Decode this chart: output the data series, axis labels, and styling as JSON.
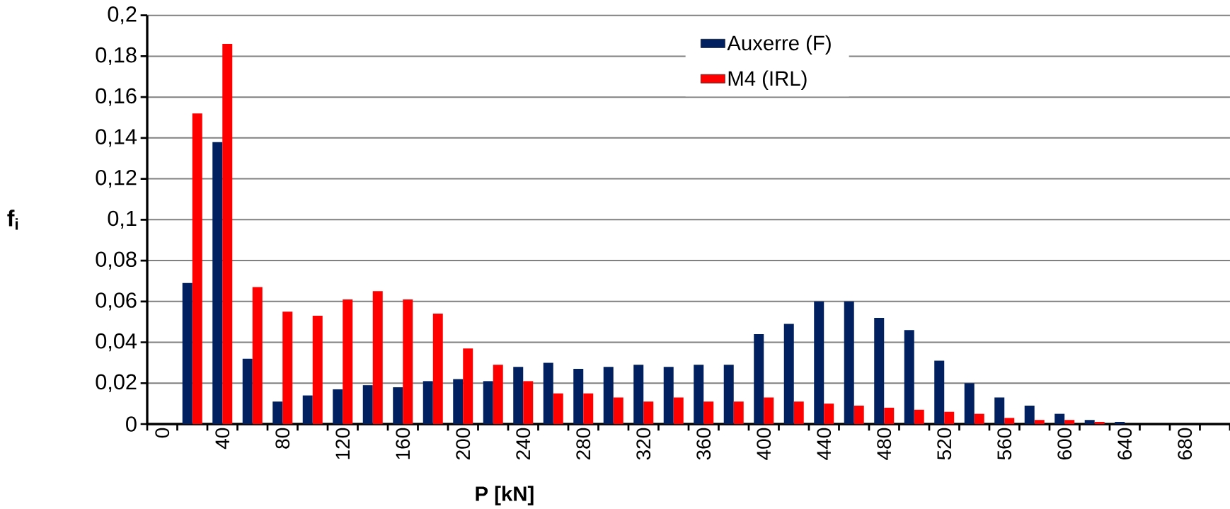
{
  "chart_data": {
    "type": "bar",
    "xlabel": "P [kN]",
    "ylabel": "f$_{i}$",
    "categories": [
      "0",
      null,
      "40",
      null,
      "80",
      null,
      "120",
      null,
      "160",
      null,
      "200",
      null,
      "240",
      null,
      "280",
      null,
      "320",
      null,
      "360",
      null,
      "400",
      null,
      "440",
      null,
      "480",
      null,
      "520",
      null,
      "560",
      null,
      "600",
      null,
      "640",
      null,
      "680",
      null
    ],
    "series": [
      {
        "name": "Auxerre (F)",
        "color": "#002060",
        "values": [
          0,
          0.069,
          0.138,
          0.032,
          0.011,
          0.014,
          0.017,
          0.019,
          0.018,
          0.021,
          0.022,
          0.021,
          0.028,
          0.03,
          0.027,
          0.028,
          0.029,
          0.028,
          0.029,
          0.029,
          0.044,
          0.049,
          0.06,
          0.06,
          0.052,
          0.046,
          0.031,
          0.02,
          0.013,
          0.009,
          0.005,
          0.002,
          0.001,
          0,
          0,
          0
        ]
      },
      {
        "name": "M4 (IRL)",
        "color": "#ff0000",
        "values": [
          0,
          0.152,
          0.186,
          0.067,
          0.055,
          0.053,
          0.061,
          0.065,
          0.061,
          0.054,
          0.037,
          0.029,
          0.021,
          0.015,
          0.015,
          0.013,
          0.011,
          0.013,
          0.011,
          0.011,
          0.013,
          0.011,
          0.01,
          0.009,
          0.008,
          0.007,
          0.006,
          0.005,
          0.003,
          0.002,
          0.002,
          0.001,
          0,
          0,
          0,
          0
        ]
      }
    ],
    "ylim": [
      0,
      0.2
    ],
    "yticks": [
      {
        "value": 0,
        "label": "0"
      },
      {
        "value": 0.02,
        "label": "0,02"
      },
      {
        "value": 0.04,
        "label": "0,04"
      },
      {
        "value": 0.06,
        "label": "0,06"
      },
      {
        "value": 0.08,
        "label": "0,08"
      },
      {
        "value": 0.1,
        "label": "0,1"
      },
      {
        "value": 0.12,
        "label": "0,12"
      },
      {
        "value": 0.14,
        "label": "0,14"
      },
      {
        "value": 0.16,
        "label": "0,16"
      },
      {
        "value": 0.18,
        "label": "0,18"
      },
      {
        "value": 0.2,
        "label": "0,2"
      }
    ],
    "grid": "y",
    "legend": "top right"
  }
}
